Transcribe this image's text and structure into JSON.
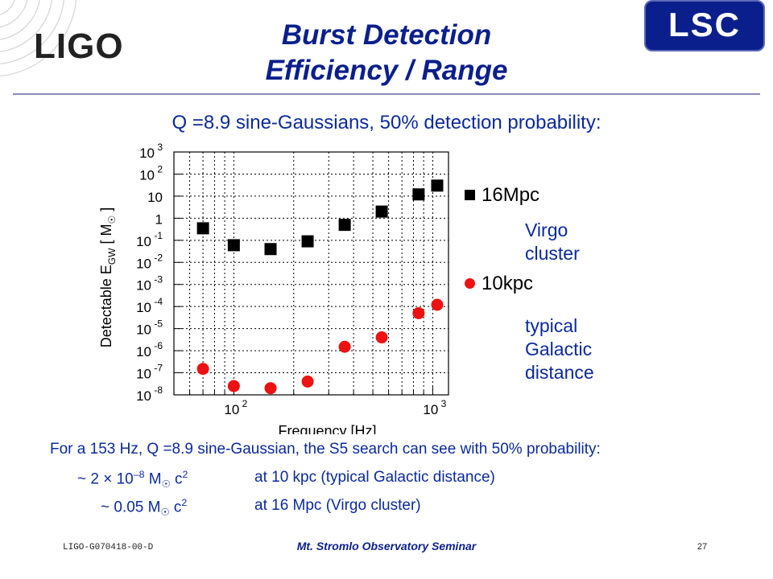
{
  "header": {
    "logo_left": "LIGO",
    "logo_right": "LSC",
    "title_line1": "Burst Detection",
    "title_line2": "Efficiency / Range"
  },
  "subtitle": "Q =8.9 sine-Gaussians, 50% detection probability:",
  "chart_data": {
    "type": "scatter",
    "xlabel": "Frequency [Hz]",
    "ylabel_main": "Detectable E",
    "ylabel_sub": "GW",
    "ylabel_unit_open": "[ M",
    "ylabel_unit_close": "]",
    "xscale": "log",
    "yscale": "log",
    "xlim": [
      50,
      1200
    ],
    "ylim": [
      1e-08,
      1000
    ],
    "x_ticks": [
      {
        "value": 100,
        "base": "10",
        "exp": "2"
      },
      {
        "value": 1000,
        "base": "10",
        "exp": "3"
      }
    ],
    "y_ticks": [
      {
        "value": 1000,
        "base": "10",
        "exp": "3"
      },
      {
        "value": 100,
        "base": "10",
        "exp": "2"
      },
      {
        "value": 10,
        "base": "10",
        "exp": ""
      },
      {
        "value": 1,
        "base": "1",
        "exp": ""
      },
      {
        "value": 0.1,
        "base": "10",
        "exp": "-1"
      },
      {
        "value": 0.01,
        "base": "10",
        "exp": "-2"
      },
      {
        "value": 0.001,
        "base": "10",
        "exp": "-3"
      },
      {
        "value": 0.0001,
        "base": "10",
        "exp": "-4"
      },
      {
        "value": 1e-05,
        "base": "10",
        "exp": "-5"
      },
      {
        "value": 1e-06,
        "base": "10",
        "exp": "-6"
      },
      {
        "value": 1e-07,
        "base": "10",
        "exp": "-7"
      },
      {
        "value": 1e-08,
        "base": "10",
        "exp": "-8"
      }
    ],
    "grid": true,
    "series": [
      {
        "name": "16Mpc",
        "marker": "square",
        "color": "#000000",
        "x": [
          70,
          100,
          153,
          235,
          361,
          554,
          849,
          1053
        ],
        "y": [
          0.35,
          0.06,
          0.04,
          0.09,
          0.5,
          2.0,
          12,
          30
        ]
      },
      {
        "name": "10kpc",
        "marker": "circle",
        "color": "#ee1111",
        "x": [
          70,
          100,
          153,
          235,
          361,
          554,
          849,
          1053
        ],
        "y": [
          1.5e-07,
          2.5e-08,
          2e-08,
          4e-08,
          1.5e-06,
          4e-06,
          5e-05,
          0.00012
        ]
      }
    ],
    "legend_notes": {
      "16Mpc": [
        "Virgo",
        "cluster"
      ],
      "10kpc": [
        "typical",
        "Galactic",
        "distance"
      ]
    }
  },
  "summary": {
    "intro": "For a 153 Hz, Q =8.9 sine-Gaussian, the S5 search can see with 50% probability:",
    "line1_value_pre": "~ 2 × 10",
    "line1_exp": "–8",
    "line1_unit": "M",
    "line1_tail": "c",
    "line1_tail_exp": "2",
    "line1_desc": "at 10 kpc  (typical Galactic distance)",
    "line2_value_pre": "~ 0.05 M",
    "line2_tail": "c",
    "line2_tail_exp": "2",
    "line2_desc": "at 16 Mpc  (Virgo cluster)"
  },
  "footer": {
    "doc_id": "LIGO-G070418-00-D",
    "seminar": "Mt. Stromlo Observatory Seminar",
    "page": "27"
  },
  "colors": {
    "title_blue": "#0b1f8c",
    "text_blue": "#0b2a9c",
    "square_series": "#000000",
    "circle_series": "#ee1111"
  }
}
